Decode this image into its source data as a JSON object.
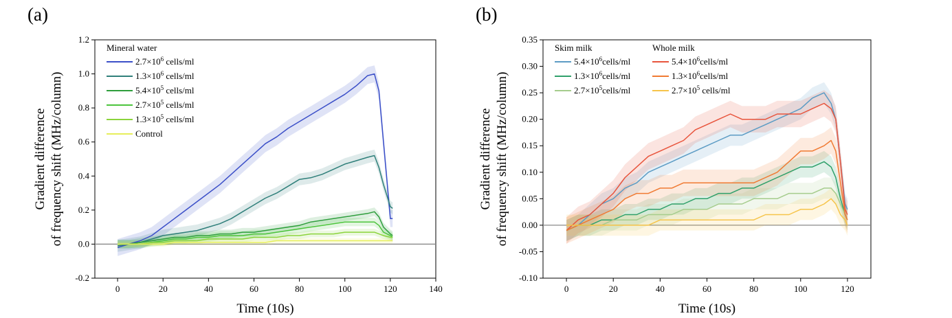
{
  "figure": {
    "panels": [
      {
        "label": "(a)"
      },
      {
        "label": "(b)"
      }
    ]
  },
  "chart_data": [
    {
      "type": "line",
      "panel": "(a)",
      "title": "",
      "xlabel": "Time (10s)",
      "ylabel_line1": "Gradient difference",
      "ylabel_line2": "of frequency shift (MHz/column)",
      "xlim": [
        -10,
        140
      ],
      "ylim": [
        -0.2,
        1.2
      ],
      "xticks": [
        0,
        20,
        40,
        60,
        80,
        100,
        120,
        140
      ],
      "xtick_labels": [
        "0",
        "20",
        "40",
        "60",
        "80",
        "100",
        "120",
        "140"
      ],
      "yticks": [
        -0.2,
        0.0,
        0.2,
        0.4,
        0.6,
        0.8,
        1.0,
        1.2
      ],
      "ytick_labels": [
        "-0.2",
        "0.0",
        "0.2",
        "0.4",
        "0.6",
        "0.8",
        "1.0",
        "1.2"
      ],
      "baseline": 0,
      "legend_position": "top-left",
      "legend_groups": [
        {
          "title": "Mineral water",
          "series_indices": [
            0,
            1,
            2,
            3,
            4,
            5
          ]
        }
      ],
      "x": [
        0,
        5,
        10,
        15,
        20,
        25,
        30,
        35,
        40,
        45,
        50,
        55,
        60,
        65,
        70,
        75,
        80,
        85,
        90,
        95,
        100,
        105,
        110,
        113,
        115,
        117,
        120,
        121
      ],
      "series": [
        {
          "name_main": "2.7×10",
          "name_exp": "6",
          "name_unit": " cells/ml",
          "color": "#3b4fc8",
          "band": 0.05,
          "values": [
            -0.02,
            0.0,
            0.02,
            0.05,
            0.1,
            0.15,
            0.2,
            0.25,
            0.3,
            0.35,
            0.41,
            0.47,
            0.53,
            0.59,
            0.63,
            0.68,
            0.72,
            0.76,
            0.8,
            0.84,
            0.88,
            0.93,
            0.99,
            1.0,
            0.9,
            0.6,
            0.15,
            0.15
          ]
        },
        {
          "name_main": "1.3×10",
          "name_exp": "6",
          "name_unit": " cells/ml",
          "color": "#2f7f7a",
          "band": 0.035,
          "values": [
            -0.01,
            0.0,
            0.01,
            0.03,
            0.05,
            0.06,
            0.07,
            0.08,
            0.1,
            0.12,
            0.15,
            0.19,
            0.23,
            0.27,
            0.3,
            0.34,
            0.38,
            0.39,
            0.41,
            0.44,
            0.47,
            0.49,
            0.51,
            0.52,
            0.45,
            0.35,
            0.22,
            0.21
          ]
        },
        {
          "name_main": "5.4×10",
          "name_exp": "5",
          "name_unit": " cells/ml",
          "color": "#2e9e3c",
          "band": 0.025,
          "values": [
            0.0,
            0.0,
            0.01,
            0.02,
            0.03,
            0.04,
            0.04,
            0.05,
            0.05,
            0.06,
            0.06,
            0.07,
            0.07,
            0.08,
            0.09,
            0.1,
            0.11,
            0.13,
            0.14,
            0.15,
            0.16,
            0.17,
            0.18,
            0.19,
            0.16,
            0.1,
            0.06,
            0.05
          ]
        },
        {
          "name_main": "2.7×10",
          "name_exp": "5",
          "name_unit": " cells/ml",
          "color": "#4cc43c",
          "band": 0.025,
          "values": [
            0.0,
            0.0,
            0.0,
            0.01,
            0.02,
            0.03,
            0.03,
            0.04,
            0.04,
            0.05,
            0.05,
            0.05,
            0.06,
            0.06,
            0.07,
            0.08,
            0.09,
            0.1,
            0.11,
            0.12,
            0.13,
            0.13,
            0.13,
            0.13,
            0.11,
            0.07,
            0.05,
            0.04
          ]
        },
        {
          "name_main": "1.3×10",
          "name_exp": "5",
          "name_unit": " cells/ml",
          "color": "#8bd43c",
          "band": 0.02,
          "values": [
            0.0,
            0.0,
            0.0,
            0.01,
            0.01,
            0.02,
            0.02,
            0.02,
            0.03,
            0.03,
            0.03,
            0.03,
            0.04,
            0.04,
            0.04,
            0.05,
            0.05,
            0.06,
            0.06,
            0.06,
            0.07,
            0.07,
            0.07,
            0.07,
            0.06,
            0.05,
            0.04,
            0.04
          ]
        },
        {
          "name_main": "Control",
          "name_exp": "",
          "name_unit": "",
          "color": "#e6ee5a",
          "band": 0.015,
          "values": [
            0.0,
            0.0,
            0.0,
            0.0,
            0.0,
            0.01,
            0.01,
            0.01,
            0.01,
            0.01,
            0.01,
            0.01,
            0.01,
            0.01,
            0.02,
            0.02,
            0.02,
            0.02,
            0.02,
            0.02,
            0.02,
            0.02,
            0.02,
            0.02,
            0.02,
            0.02,
            0.02,
            0.02
          ]
        }
      ]
    },
    {
      "type": "line",
      "panel": "(b)",
      "title": "",
      "xlabel": "Time (10s)",
      "ylabel_line1": "Gradient difference",
      "ylabel_line2": "of frequency shift (MHz/column)",
      "xlim": [
        -10,
        130
      ],
      "ylim": [
        -0.1,
        0.35
      ],
      "xticks": [
        0,
        20,
        40,
        60,
        80,
        100,
        120
      ],
      "xtick_labels": [
        "0",
        "20",
        "40",
        "60",
        "80",
        "100",
        "120"
      ],
      "yticks": [
        -0.1,
        -0.05,
        0.0,
        0.05,
        0.1,
        0.15,
        0.2,
        0.25,
        0.3,
        0.35
      ],
      "ytick_labels": [
        "-0.10",
        "-0.05",
        "0.00",
        "0.05",
        "0.10",
        "0.15",
        "0.20",
        "0.25",
        "0.30",
        "0.35"
      ],
      "baseline": 0,
      "legend_position": "top-left",
      "legend_groups": [
        {
          "title": "Skim milk",
          "series_indices": [
            0,
            1,
            2
          ]
        },
        {
          "title": "Whole milk",
          "series_indices": [
            3,
            4,
            5
          ]
        }
      ],
      "x": [
        0,
        5,
        10,
        15,
        20,
        25,
        30,
        35,
        40,
        45,
        50,
        55,
        60,
        65,
        70,
        75,
        80,
        85,
        90,
        95,
        100,
        105,
        110,
        113,
        115,
        117,
        119,
        120
      ],
      "series": [
        {
          "name_main": "5.4×10",
          "name_exp": "6",
          "name_unit": "cells/ml",
          "color": "#5b9bc4",
          "band": 0.02,
          "values": [
            -0.01,
            0.0,
            0.02,
            0.04,
            0.05,
            0.07,
            0.08,
            0.1,
            0.11,
            0.12,
            0.13,
            0.14,
            0.15,
            0.16,
            0.17,
            0.17,
            0.18,
            0.19,
            0.2,
            0.21,
            0.22,
            0.24,
            0.25,
            0.23,
            0.2,
            0.12,
            0.04,
            0.03
          ]
        },
        {
          "name_main": "1.3×10",
          "name_exp": "6",
          "name_unit": "cells/ml",
          "color": "#2fa06a",
          "band": 0.02,
          "values": [
            -0.01,
            0.0,
            0.0,
            0.01,
            0.01,
            0.02,
            0.02,
            0.03,
            0.03,
            0.04,
            0.04,
            0.05,
            0.05,
            0.06,
            0.06,
            0.07,
            0.07,
            0.08,
            0.09,
            0.1,
            0.11,
            0.11,
            0.12,
            0.11,
            0.09,
            0.05,
            0.02,
            0.01
          ]
        },
        {
          "name_main": "2.7×10",
          "name_exp": "5",
          "name_unit": "cells/ml",
          "color": "#a5cc8c",
          "band": 0.02,
          "values": [
            -0.01,
            0.0,
            0.0,
            0.0,
            0.01,
            0.01,
            0.01,
            0.02,
            0.02,
            0.02,
            0.03,
            0.03,
            0.03,
            0.04,
            0.04,
            0.04,
            0.05,
            0.05,
            0.05,
            0.06,
            0.06,
            0.06,
            0.07,
            0.07,
            0.06,
            0.04,
            0.02,
            0.01
          ]
        },
        {
          "name_main": "5.4×10",
          "name_exp": "6",
          "name_unit": "cells/ml",
          "color": "#e8543c",
          "band": 0.025,
          "values": [
            -0.01,
            0.01,
            0.02,
            0.04,
            0.06,
            0.09,
            0.11,
            0.13,
            0.14,
            0.15,
            0.16,
            0.18,
            0.19,
            0.2,
            0.21,
            0.2,
            0.2,
            0.2,
            0.21,
            0.21,
            0.21,
            0.22,
            0.23,
            0.22,
            0.2,
            0.12,
            0.03,
            0.02
          ]
        },
        {
          "name_main": "1.3×10",
          "name_exp": "6",
          "name_unit": "cells/ml",
          "color": "#f07a32",
          "band": 0.025,
          "values": [
            -0.01,
            0.0,
            0.01,
            0.02,
            0.03,
            0.05,
            0.06,
            0.06,
            0.07,
            0.07,
            0.08,
            0.08,
            0.08,
            0.08,
            0.08,
            0.08,
            0.08,
            0.09,
            0.1,
            0.12,
            0.14,
            0.14,
            0.15,
            0.16,
            0.14,
            0.08,
            0.02,
            0.01
          ]
        },
        {
          "name_main": "2.7×10",
          "name_exp": "5",
          "name_unit": " cells/ml",
          "color": "#f6c44a",
          "band": 0.02,
          "values": [
            0.0,
            0.0,
            0.0,
            0.0,
            0.0,
            0.0,
            0.0,
            0.0,
            0.01,
            0.01,
            0.01,
            0.01,
            0.01,
            0.01,
            0.01,
            0.01,
            0.01,
            0.02,
            0.02,
            0.02,
            0.03,
            0.03,
            0.04,
            0.05,
            0.04,
            0.02,
            0.01,
            0.0
          ]
        }
      ]
    }
  ]
}
